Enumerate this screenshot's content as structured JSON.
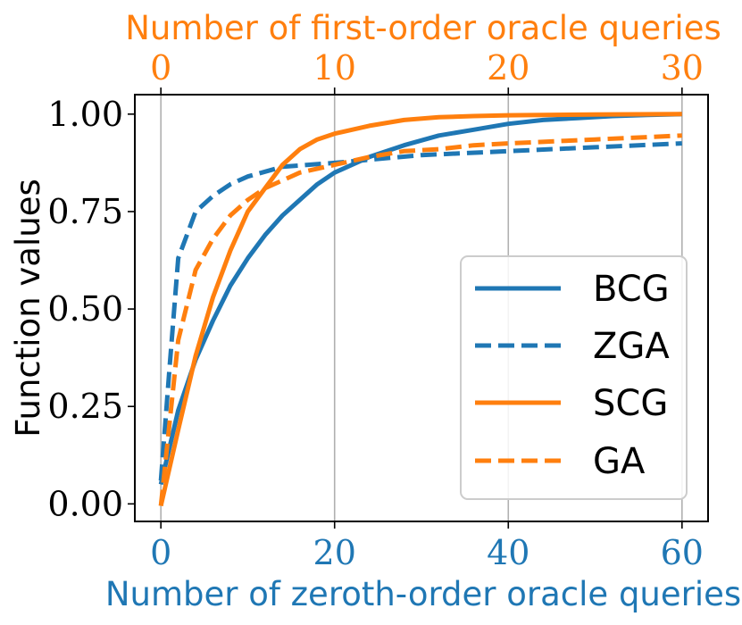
{
  "chart_data": {
    "type": "line",
    "xlabel": "Number of zeroth-order oracle queries",
    "x2label": "Number of first-order oracle queries",
    "ylabel": "Function values",
    "xlim": [
      -3,
      63
    ],
    "x2lim": [
      -1.5,
      31.5
    ],
    "ylim": [
      -0.045,
      1.05
    ],
    "xticks": [
      0,
      20,
      40,
      60
    ],
    "xtick_labels": [
      "0",
      "20",
      "40",
      "60"
    ],
    "x2ticks": [
      0,
      10,
      20,
      30
    ],
    "x2tick_labels": [
      "0",
      "10",
      "20",
      "30"
    ],
    "yticks": [
      0.0,
      0.25,
      0.5,
      0.75,
      1.0
    ],
    "ytick_labels": [
      "0.00",
      "0.25",
      "0.50",
      "0.75",
      "1.00"
    ],
    "grid": "vertical",
    "legend_position": "lower-right",
    "series": [
      {
        "name": "BCG",
        "axis": "bottom",
        "color": "#1f77b4",
        "dash": "solid",
        "x": [
          0,
          2,
          4,
          6,
          8,
          10,
          12,
          14,
          16,
          18,
          20,
          24,
          28,
          32,
          36,
          40,
          44,
          48,
          52,
          56,
          60
        ],
        "y": [
          0.05,
          0.24,
          0.37,
          0.47,
          0.56,
          0.63,
          0.69,
          0.74,
          0.78,
          0.82,
          0.85,
          0.89,
          0.92,
          0.945,
          0.96,
          0.975,
          0.985,
          0.99,
          0.995,
          0.998,
          1.0
        ]
      },
      {
        "name": "ZGA",
        "axis": "bottom",
        "color": "#1f77b4",
        "dash": "dashed",
        "x": [
          0,
          1,
          2,
          4,
          6,
          8,
          10,
          14,
          20,
          30,
          40,
          50,
          60
        ],
        "y": [
          0.06,
          0.35,
          0.63,
          0.75,
          0.79,
          0.82,
          0.84,
          0.865,
          0.875,
          0.895,
          0.905,
          0.915,
          0.925
        ]
      },
      {
        "name": "SCG",
        "axis": "top",
        "color": "#ff7f0e",
        "dash": "solid",
        "x": [
          0,
          1,
          2,
          3,
          4,
          5,
          6,
          7,
          8,
          9,
          10,
          12,
          14,
          16,
          18,
          20,
          25,
          30
        ],
        "y": [
          -0.005,
          0.19,
          0.38,
          0.53,
          0.65,
          0.75,
          0.81,
          0.87,
          0.91,
          0.935,
          0.95,
          0.97,
          0.985,
          0.992,
          0.995,
          0.997,
          0.999,
          1.0
        ]
      },
      {
        "name": "GA",
        "axis": "top",
        "color": "#ff7f0e",
        "dash": "dashed",
        "x": [
          0,
          1,
          2,
          3,
          4,
          5,
          6,
          8,
          10,
          12,
          14,
          16,
          18,
          20,
          25,
          30
        ],
        "y": [
          -0.005,
          0.42,
          0.6,
          0.68,
          0.74,
          0.78,
          0.81,
          0.85,
          0.87,
          0.89,
          0.905,
          0.91,
          0.92,
          0.925,
          0.935,
          0.945
        ]
      }
    ]
  }
}
